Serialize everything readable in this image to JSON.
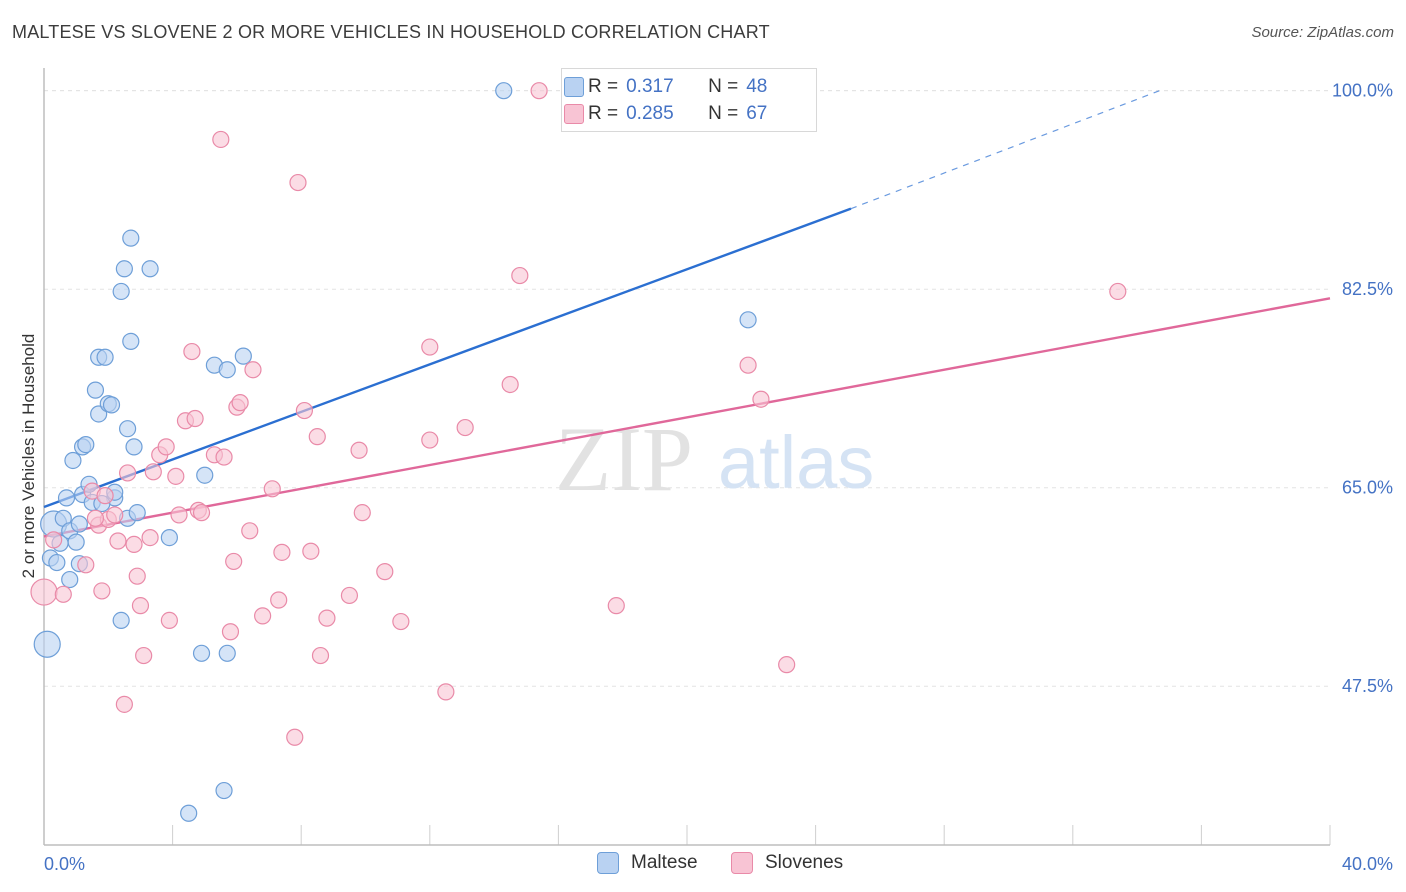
{
  "title": "MALTESE VS SLOVENE 2 OR MORE VEHICLES IN HOUSEHOLD CORRELATION CHART",
  "source": "Source: ZipAtlas.com",
  "watermark": {
    "zip": "ZIP",
    "atlas": "atlas"
  },
  "colors": {
    "maltese_fill": "#b9d2f2",
    "maltese_stroke": "#6e9fd8",
    "maltese_line": "#2b6fd1",
    "slovene_fill": "#f8c4d4",
    "slovene_stroke": "#e98aa8",
    "slovene_line": "#e0689a",
    "axis_label": "#4472c4",
    "grid": "#e4e4e4"
  },
  "legend": {
    "maltese": {
      "r_label": "R =",
      "r_value": "0.317",
      "n_label": "N =",
      "n_value": "48"
    },
    "slovene": {
      "r_label": "R =",
      "r_value": "0.285",
      "n_label": "N =",
      "n_value": "67"
    }
  },
  "chart_data": {
    "type": "scatter",
    "title": "MALTESE VS SLOVENE 2 OR MORE VEHICLES IN HOUSEHOLD CORRELATION CHART",
    "xlabel": "",
    "ylabel": "2 or more Vehicles in Household",
    "xlim": [
      0,
      40
    ],
    "ylim": [
      33.5,
      102
    ],
    "x_tick_labels": [
      "0.0%",
      "40.0%"
    ],
    "y_ticks": [
      47.5,
      65.0,
      82.5,
      100.0
    ],
    "y_tick_labels": [
      "47.5%",
      "65.0%",
      "82.5%",
      "100.0%"
    ],
    "legend_position": "bottom",
    "series": [
      {
        "name": "Maltese",
        "trend": {
          "x0": 0,
          "y0": 63.3,
          "x1": 25.1,
          "y1": 89.6,
          "dash_to_x": 34.7,
          "dash_to_y": 100.0
        },
        "points": [
          [
            0.1,
            51.2,
            2
          ],
          [
            0.2,
            58.8,
            1
          ],
          [
            0.3,
            61.8,
            1.5
          ],
          [
            0.4,
            58.4,
            1
          ],
          [
            0.5,
            60.1,
            1
          ],
          [
            0.6,
            62.3,
            1
          ],
          [
            0.7,
            64.1,
            1
          ],
          [
            0.8,
            56.9,
            1
          ],
          [
            0.8,
            61.2,
            1
          ],
          [
            0.9,
            67.4,
            1
          ],
          [
            1.0,
            60.2,
            1
          ],
          [
            1.1,
            58.3,
            1
          ],
          [
            1.1,
            61.8,
            1
          ],
          [
            1.2,
            64.4,
            1
          ],
          [
            1.2,
            68.6,
            1
          ],
          [
            1.3,
            68.8,
            1
          ],
          [
            1.4,
            65.3,
            1
          ],
          [
            1.5,
            63.7,
            1
          ],
          [
            1.6,
            73.6,
            1
          ],
          [
            1.7,
            76.5,
            1
          ],
          [
            1.7,
            71.5,
            1
          ],
          [
            1.9,
            76.5,
            1
          ],
          [
            2.0,
            72.4,
            1
          ],
          [
            2.1,
            72.3,
            1
          ],
          [
            2.2,
            64.1,
            1
          ],
          [
            2.2,
            64.6,
            1
          ],
          [
            2.4,
            82.3,
            1
          ],
          [
            2.4,
            53.3,
            1
          ],
          [
            2.5,
            84.3,
            1
          ],
          [
            2.6,
            70.2,
            1
          ],
          [
            2.6,
            62.3,
            1
          ],
          [
            2.7,
            77.9,
            1
          ],
          [
            2.7,
            87.0,
            1
          ],
          [
            2.8,
            68.6,
            1
          ],
          [
            2.9,
            62.8,
            1
          ],
          [
            3.3,
            84.3,
            1
          ],
          [
            3.9,
            60.6,
            1
          ],
          [
            4.5,
            36.3,
            1
          ],
          [
            4.9,
            50.4,
            1
          ],
          [
            5.0,
            66.1,
            1
          ],
          [
            5.3,
            75.8,
            1
          ],
          [
            5.7,
            75.4,
            1
          ],
          [
            5.7,
            50.4,
            1
          ],
          [
            5.6,
            38.3,
            1
          ],
          [
            6.2,
            76.6,
            1
          ],
          [
            14.3,
            100.0,
            1
          ],
          [
            21.9,
            79.8,
            1
          ],
          [
            1.8,
            63.6,
            1
          ]
        ]
      },
      {
        "name": "Slovenes",
        "trend": {
          "x0": 0,
          "y0": 60.7,
          "x1": 40,
          "y1": 81.7
        },
        "points": [
          [
            0.0,
            55.8,
            2
          ],
          [
            0.3,
            60.4,
            1
          ],
          [
            0.6,
            55.6,
            1
          ],
          [
            1.3,
            58.2,
            1
          ],
          [
            1.5,
            64.7,
            1
          ],
          [
            1.7,
            61.7,
            1
          ],
          [
            1.8,
            55.9,
            1
          ],
          [
            1.9,
            64.3,
            1
          ],
          [
            2.0,
            62.2,
            1
          ],
          [
            2.2,
            62.6,
            1
          ],
          [
            2.3,
            60.3,
            1
          ],
          [
            2.5,
            45.9,
            1
          ],
          [
            2.6,
            66.3,
            1
          ],
          [
            2.8,
            60.0,
            1
          ],
          [
            3.0,
            54.6,
            1
          ],
          [
            3.1,
            50.2,
            1
          ],
          [
            3.3,
            60.6,
            1
          ],
          [
            3.4,
            66.4,
            1
          ],
          [
            3.6,
            67.9,
            1
          ],
          [
            3.8,
            68.6,
            1
          ],
          [
            3.9,
            53.3,
            1
          ],
          [
            4.1,
            66.0,
            1
          ],
          [
            4.2,
            62.6,
            1
          ],
          [
            4.4,
            70.9,
            1
          ],
          [
            4.7,
            71.1,
            1
          ],
          [
            4.8,
            63.0,
            1
          ],
          [
            4.6,
            77.0,
            1
          ],
          [
            4.9,
            62.8,
            1
          ],
          [
            5.3,
            67.9,
            1
          ],
          [
            5.5,
            95.7,
            1
          ],
          [
            5.6,
            67.7,
            1
          ],
          [
            5.8,
            52.3,
            1
          ],
          [
            5.9,
            58.5,
            1
          ],
          [
            6.0,
            72.1,
            1
          ],
          [
            6.1,
            72.5,
            1
          ],
          [
            6.5,
            75.4,
            1
          ],
          [
            6.8,
            53.7,
            1
          ],
          [
            7.1,
            64.9,
            1
          ],
          [
            7.3,
            55.1,
            1
          ],
          [
            7.4,
            59.3,
            1
          ],
          [
            7.8,
            43.0,
            1
          ],
          [
            7.9,
            91.9,
            1
          ],
          [
            8.1,
            71.8,
            1
          ],
          [
            8.3,
            59.4,
            1
          ],
          [
            8.5,
            69.5,
            1
          ],
          [
            8.6,
            50.2,
            1
          ],
          [
            8.8,
            53.5,
            1
          ],
          [
            9.5,
            55.5,
            1
          ],
          [
            9.8,
            68.3,
            1
          ],
          [
            9.9,
            62.8,
            1
          ],
          [
            10.6,
            57.6,
            1
          ],
          [
            11.1,
            53.2,
            1
          ],
          [
            12.0,
            69.2,
            1
          ],
          [
            12.0,
            77.4,
            1
          ],
          [
            12.5,
            47.0,
            1
          ],
          [
            13.1,
            70.3,
            1
          ],
          [
            14.5,
            74.1,
            1
          ],
          [
            14.8,
            83.7,
            1
          ],
          [
            15.4,
            100.0,
            1
          ],
          [
            17.8,
            54.6,
            1
          ],
          [
            21.9,
            75.8,
            1
          ],
          [
            22.3,
            72.8,
            1
          ],
          [
            23.1,
            49.4,
            1
          ],
          [
            33.4,
            82.3,
            1
          ],
          [
            1.6,
            62.3,
            1
          ],
          [
            6.4,
            61.2,
            1
          ],
          [
            2.9,
            57.2,
            1
          ]
        ]
      }
    ]
  }
}
